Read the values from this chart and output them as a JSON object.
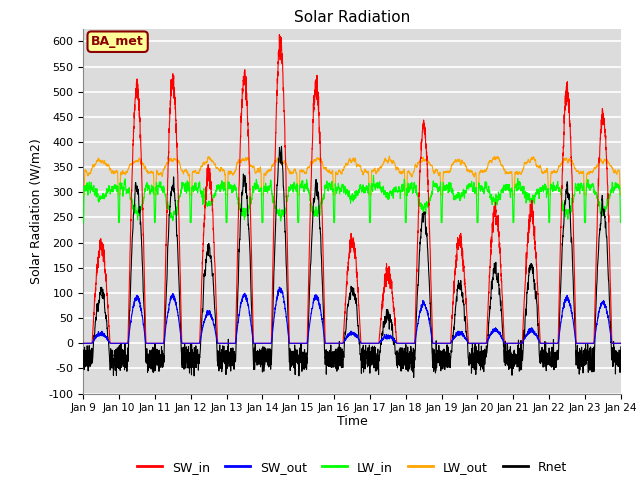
{
  "title": "Solar Radiation",
  "xlabel": "Time",
  "ylabel": "Solar Radiation (W/m2)",
  "ylim": [
    -100,
    625
  ],
  "yticks": [
    -100,
    -50,
    0,
    50,
    100,
    150,
    200,
    250,
    300,
    350,
    400,
    450,
    500,
    550,
    600
  ],
  "xticklabels": [
    "Jan 9",
    "Jan 10",
    "Jan 11",
    "Jan 12",
    "Jan 13",
    "Jan 14",
    "Jan 15",
    "Jan 16",
    "Jan 17",
    "Jan 18",
    "Jan 19",
    "Jan 20",
    "Jan 21",
    "Jan 22",
    "Jan 23",
    "Jan 24"
  ],
  "colors": {
    "SW_in": "#ff0000",
    "SW_out": "#0000ff",
    "LW_in": "#00ff00",
    "LW_out": "#ffa500",
    "Rnet": "#000000"
  },
  "annotation_text": "BA_met",
  "annotation_color": "#8b0000",
  "annotation_bg": "#ffff99",
  "plot_bg": "#dcdcdc",
  "fig_bg": "#ffffff",
  "grid_color": "#ffffff",
  "n_days": 15,
  "points_per_day": 288,
  "day_peaks_SW": [
    195,
    505,
    520,
    340,
    530,
    595,
    510,
    205,
    140,
    430,
    205,
    260,
    255,
    500,
    450
  ],
  "seed": 12345
}
